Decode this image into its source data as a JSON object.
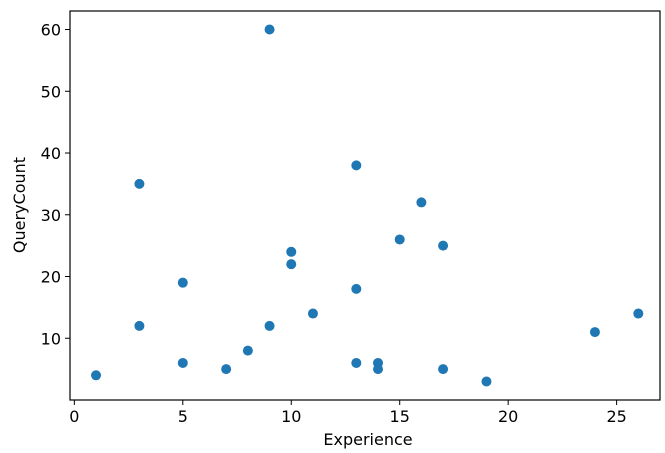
{
  "chart_data": {
    "type": "scatter",
    "title": "",
    "xlabel": "Experience",
    "ylabel": "QueryCount",
    "xlim": [
      -0.2,
      27.0
    ],
    "ylim": [
      0.0,
      63.0
    ],
    "xticks": [
      0,
      5,
      10,
      15,
      20,
      25
    ],
    "yticks": [
      10,
      20,
      30,
      40,
      50,
      60
    ],
    "grid": false,
    "legend": "none",
    "marker_color": "#1f77b4",
    "points": [
      {
        "x": 1,
        "y": 4
      },
      {
        "x": 3,
        "y": 35
      },
      {
        "x": 3,
        "y": 12
      },
      {
        "x": 5,
        "y": 19
      },
      {
        "x": 5,
        "y": 6
      },
      {
        "x": 7,
        "y": 5
      },
      {
        "x": 8,
        "y": 8
      },
      {
        "x": 9,
        "y": 60
      },
      {
        "x": 9,
        "y": 12
      },
      {
        "x": 10,
        "y": 24
      },
      {
        "x": 10,
        "y": 22
      },
      {
        "x": 11,
        "y": 14
      },
      {
        "x": 13,
        "y": 38
      },
      {
        "x": 13,
        "y": 18
      },
      {
        "x": 13,
        "y": 6
      },
      {
        "x": 14,
        "y": 6
      },
      {
        "x": 14,
        "y": 5
      },
      {
        "x": 15,
        "y": 26
      },
      {
        "x": 16,
        "y": 32
      },
      {
        "x": 17,
        "y": 25
      },
      {
        "x": 17,
        "y": 5
      },
      {
        "x": 19,
        "y": 3
      },
      {
        "x": 24,
        "y": 11
      },
      {
        "x": 26,
        "y": 14
      }
    ]
  }
}
